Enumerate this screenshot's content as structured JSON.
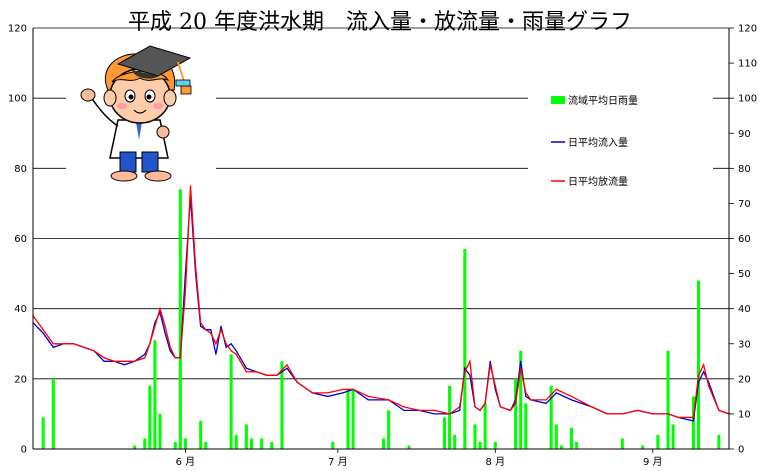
{
  "chart_data": {
    "type": "bar+line",
    "title": "平成 20 年度洪水期　流入量・放流量・雨量グラフ",
    "left_axis": {
      "ylim": [
        0,
        120
      ],
      "ticks": [
        0,
        20,
        40,
        60,
        80,
        100,
        120
      ]
    },
    "right_axis": {
      "ylim": [
        0,
        120
      ],
      "ticks": [
        0,
        10,
        20,
        30,
        40,
        50,
        60,
        70,
        80,
        90,
        100,
        110,
        120
      ]
    },
    "x_axis": {
      "range": [
        "2008-05-16",
        "2008-09-30"
      ],
      "month_ticks": [
        {
          "date": "2008-06-15",
          "label": "6 月"
        },
        {
          "date": "2008-07-15",
          "label": "7 月"
        },
        {
          "date": "2008-08-15",
          "label": "8 月"
        },
        {
          "date": "2008-09-15",
          "label": "9 月"
        }
      ]
    },
    "grid": true,
    "legend_position": "top-right",
    "colors": {
      "rain": "#00ff00",
      "inflow": "#0000cc",
      "outflow": "#ff0000"
    },
    "series": [
      {
        "name": "流域平均日雨量",
        "kind": "bar",
        "axis": "right",
        "points": [
          [
            "2008-05-18",
            9
          ],
          [
            "2008-05-20",
            20
          ],
          [
            "2008-06-05",
            1
          ],
          [
            "2008-06-07",
            3
          ],
          [
            "2008-06-08",
            18
          ],
          [
            "2008-06-09",
            31
          ],
          [
            "2008-06-10",
            10
          ],
          [
            "2008-06-13",
            2
          ],
          [
            "2008-06-14",
            74
          ],
          [
            "2008-06-15",
            3
          ],
          [
            "2008-06-18",
            8
          ],
          [
            "2008-06-19",
            2
          ],
          [
            "2008-06-24",
            27
          ],
          [
            "2008-06-25",
            4
          ],
          [
            "2008-06-27",
            7
          ],
          [
            "2008-06-28",
            3
          ],
          [
            "2008-06-30",
            3
          ],
          [
            "2008-07-02",
            2
          ],
          [
            "2008-07-04",
            25
          ],
          [
            "2008-07-14",
            2
          ],
          [
            "2008-07-17",
            17
          ],
          [
            "2008-07-18",
            17
          ],
          [
            "2008-07-24",
            3
          ],
          [
            "2008-07-25",
            11
          ],
          [
            "2008-07-29",
            1
          ],
          [
            "2008-08-05",
            9
          ],
          [
            "2008-08-06",
            18
          ],
          [
            "2008-08-07",
            4
          ],
          [
            "2008-08-09",
            57
          ],
          [
            "2008-08-11",
            7
          ],
          [
            "2008-08-12",
            2
          ],
          [
            "2008-08-13",
            13
          ],
          [
            "2008-08-15",
            2
          ],
          [
            "2008-08-19",
            20
          ],
          [
            "2008-08-20",
            28
          ],
          [
            "2008-08-21",
            13
          ],
          [
            "2008-08-26",
            18
          ],
          [
            "2008-08-27",
            7
          ],
          [
            "2008-08-28",
            1
          ],
          [
            "2008-08-30",
            6
          ],
          [
            "2008-08-31",
            2
          ],
          [
            "2008-09-09",
            3
          ],
          [
            "2008-09-13",
            1
          ],
          [
            "2008-09-16",
            4
          ],
          [
            "2008-09-18",
            28
          ],
          [
            "2008-09-19",
            7
          ],
          [
            "2008-09-23",
            15
          ],
          [
            "2008-09-24",
            48
          ],
          [
            "2008-09-28",
            4
          ]
        ]
      },
      {
        "name": "日平均流入量",
        "kind": "line",
        "axis": "left",
        "points": [
          [
            "2008-05-16",
            36
          ],
          [
            "2008-05-18",
            33
          ],
          [
            "2008-05-20",
            29
          ],
          [
            "2008-05-22",
            30
          ],
          [
            "2008-05-24",
            30
          ],
          [
            "2008-05-26",
            29
          ],
          [
            "2008-05-28",
            28
          ],
          [
            "2008-05-30",
            25
          ],
          [
            "2008-06-01",
            25
          ],
          [
            "2008-06-03",
            24
          ],
          [
            "2008-06-05",
            25
          ],
          [
            "2008-06-07",
            27
          ],
          [
            "2008-06-08",
            30
          ],
          [
            "2008-06-09",
            36
          ],
          [
            "2008-06-10",
            39
          ],
          [
            "2008-06-11",
            33
          ],
          [
            "2008-06-12",
            28
          ],
          [
            "2008-06-13",
            26
          ],
          [
            "2008-06-14",
            26
          ],
          [
            "2008-06-15",
            50
          ],
          [
            "2008-06-16",
            72
          ],
          [
            "2008-06-17",
            50
          ],
          [
            "2008-06-18",
            35
          ],
          [
            "2008-06-19",
            34
          ],
          [
            "2008-06-20",
            34
          ],
          [
            "2008-06-21",
            27
          ],
          [
            "2008-06-22",
            35
          ],
          [
            "2008-06-23",
            29
          ],
          [
            "2008-06-24",
            30
          ],
          [
            "2008-06-25",
            28
          ],
          [
            "2008-06-27",
            23
          ],
          [
            "2008-06-29",
            22
          ],
          [
            "2008-07-01",
            21
          ],
          [
            "2008-07-03",
            21
          ],
          [
            "2008-07-05",
            23
          ],
          [
            "2008-07-07",
            19
          ],
          [
            "2008-07-10",
            16
          ],
          [
            "2008-07-13",
            15
          ],
          [
            "2008-07-16",
            16
          ],
          [
            "2008-07-18",
            17
          ],
          [
            "2008-07-21",
            14
          ],
          [
            "2008-07-25",
            14
          ],
          [
            "2008-07-28",
            11
          ],
          [
            "2008-07-31",
            11
          ],
          [
            "2008-08-03",
            10
          ],
          [
            "2008-08-06",
            10
          ],
          [
            "2008-08-08",
            11
          ],
          [
            "2008-08-09",
            23
          ],
          [
            "2008-08-10",
            21
          ],
          [
            "2008-08-11",
            12
          ],
          [
            "2008-08-12",
            11
          ],
          [
            "2008-08-13",
            13
          ],
          [
            "2008-08-14",
            25
          ],
          [
            "2008-08-15",
            17
          ],
          [
            "2008-08-16",
            12
          ],
          [
            "2008-08-18",
            11
          ],
          [
            "2008-08-19",
            14
          ],
          [
            "2008-08-20",
            25
          ],
          [
            "2008-08-21",
            15
          ],
          [
            "2008-08-22",
            14
          ],
          [
            "2008-08-25",
            13
          ],
          [
            "2008-08-27",
            16
          ],
          [
            "2008-08-30",
            14
          ],
          [
            "2008-09-03",
            12
          ],
          [
            "2008-09-06",
            10
          ],
          [
            "2008-09-09",
            10
          ],
          [
            "2008-09-12",
            11
          ],
          [
            "2008-09-15",
            10
          ],
          [
            "2008-09-18",
            10
          ],
          [
            "2008-09-20",
            9
          ],
          [
            "2008-09-23",
            8
          ],
          [
            "2008-09-24",
            19
          ],
          [
            "2008-09-25",
            22
          ],
          [
            "2008-09-26",
            19
          ],
          [
            "2008-09-28",
            11
          ],
          [
            "2008-09-30",
            10
          ]
        ]
      },
      {
        "name": "日平均放流量",
        "kind": "line",
        "axis": "left",
        "points": [
          [
            "2008-05-16",
            38
          ],
          [
            "2008-05-18",
            34
          ],
          [
            "2008-05-20",
            30
          ],
          [
            "2008-05-22",
            30
          ],
          [
            "2008-05-24",
            30
          ],
          [
            "2008-05-26",
            29
          ],
          [
            "2008-05-28",
            28
          ],
          [
            "2008-05-30",
            26
          ],
          [
            "2008-06-01",
            25
          ],
          [
            "2008-06-03",
            25
          ],
          [
            "2008-06-05",
            25
          ],
          [
            "2008-06-07",
            26
          ],
          [
            "2008-06-08",
            30
          ],
          [
            "2008-06-09",
            35
          ],
          [
            "2008-06-10",
            40
          ],
          [
            "2008-06-11",
            35
          ],
          [
            "2008-06-12",
            29
          ],
          [
            "2008-06-13",
            26
          ],
          [
            "2008-06-14",
            26
          ],
          [
            "2008-06-15",
            45
          ],
          [
            "2008-06-16",
            75
          ],
          [
            "2008-06-17",
            52
          ],
          [
            "2008-06-18",
            36
          ],
          [
            "2008-06-19",
            34
          ],
          [
            "2008-06-20",
            33
          ],
          [
            "2008-06-21",
            30
          ],
          [
            "2008-06-22",
            34
          ],
          [
            "2008-06-23",
            30
          ],
          [
            "2008-06-24",
            28
          ],
          [
            "2008-06-25",
            27
          ],
          [
            "2008-06-27",
            22
          ],
          [
            "2008-06-29",
            22
          ],
          [
            "2008-07-01",
            21
          ],
          [
            "2008-07-03",
            21
          ],
          [
            "2008-07-05",
            24
          ],
          [
            "2008-07-07",
            19
          ],
          [
            "2008-07-10",
            16
          ],
          [
            "2008-07-13",
            16
          ],
          [
            "2008-07-16",
            17
          ],
          [
            "2008-07-18",
            17
          ],
          [
            "2008-07-21",
            15
          ],
          [
            "2008-07-25",
            14
          ],
          [
            "2008-07-28",
            12
          ],
          [
            "2008-07-31",
            11
          ],
          [
            "2008-08-03",
            11
          ],
          [
            "2008-08-06",
            10
          ],
          [
            "2008-08-08",
            12
          ],
          [
            "2008-08-09",
            22
          ],
          [
            "2008-08-10",
            25
          ],
          [
            "2008-08-11",
            12
          ],
          [
            "2008-08-12",
            11
          ],
          [
            "2008-08-13",
            13
          ],
          [
            "2008-08-14",
            24
          ],
          [
            "2008-08-15",
            18
          ],
          [
            "2008-08-16",
            12
          ],
          [
            "2008-08-18",
            11
          ],
          [
            "2008-08-19",
            13
          ],
          [
            "2008-08-20",
            23
          ],
          [
            "2008-08-21",
            16
          ],
          [
            "2008-08-22",
            14
          ],
          [
            "2008-08-25",
            14
          ],
          [
            "2008-08-27",
            17
          ],
          [
            "2008-08-30",
            15
          ],
          [
            "2008-09-03",
            12
          ],
          [
            "2008-09-06",
            10
          ],
          [
            "2008-09-09",
            10
          ],
          [
            "2008-09-12",
            11
          ],
          [
            "2008-09-15",
            10
          ],
          [
            "2008-09-18",
            10
          ],
          [
            "2008-09-20",
            9
          ],
          [
            "2008-09-23",
            9
          ],
          [
            "2008-09-24",
            21
          ],
          [
            "2008-09-25",
            24
          ],
          [
            "2008-09-26",
            18
          ],
          [
            "2008-09-28",
            11
          ],
          [
            "2008-09-30",
            10
          ]
        ]
      }
    ]
  },
  "mascot": {
    "icon": "scholar-child-mascot-icon"
  }
}
